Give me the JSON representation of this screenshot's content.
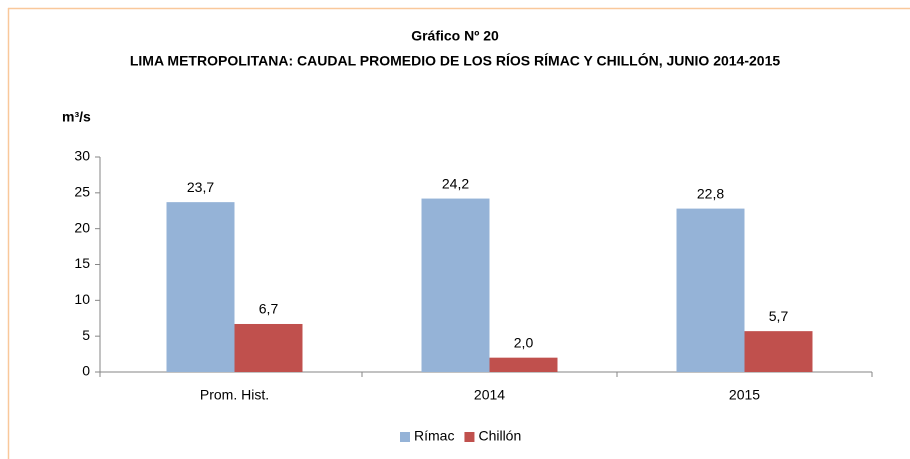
{
  "chart_data": {
    "type": "bar",
    "title": "Gráfico Nº 20",
    "subtitle": "LIMA METROPOLITANA: CAUDAL PROMEDIO DE LOS RÍOS RÍMAC Y CHILLÓN, JUNIO 2014-2015",
    "y_label": "m³/s",
    "categories": [
      "Prom. Hist.",
      "2014",
      "2015"
    ],
    "series": [
      {
        "name": "Rímac",
        "color": "#95b3d7",
        "values": [
          23.7,
          24.2,
          22.8
        ],
        "value_labels": [
          "23,7",
          "24,2",
          "22,8"
        ]
      },
      {
        "name": "Chillón",
        "color": "#c0504d",
        "values": [
          6.7,
          2.0,
          5.7
        ],
        "value_labels": [
          "6,7",
          "2,0",
          "5,7"
        ]
      }
    ],
    "ylim": [
      0,
      30
    ],
    "yticks": [
      0,
      5,
      10,
      15,
      20,
      25,
      30
    ],
    "legend": "bottom"
  }
}
